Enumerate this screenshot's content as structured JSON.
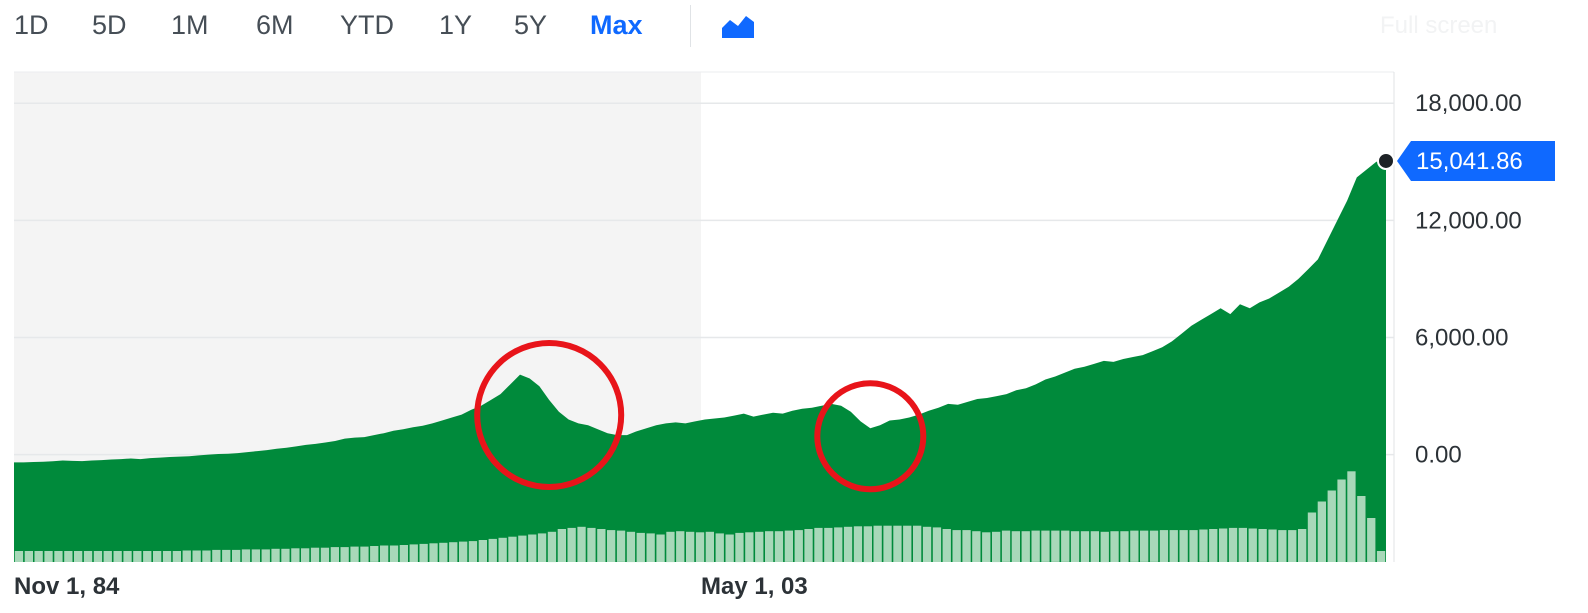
{
  "toolbar": {
    "ranges": [
      "1D",
      "5D",
      "1M",
      "6M",
      "YTD",
      "1Y",
      "5Y",
      "Max"
    ],
    "active_range": "Max",
    "chart_type_icon": "area-chart-icon",
    "fullscreen_label": "Full screen"
  },
  "colors": {
    "area": "#008a3b",
    "volume": "#a8d8b9",
    "active_tab": "#0f69ff",
    "price_badge": "#0f69ff",
    "circles": "#e8141a",
    "shaded_region": "#f4f4f4"
  },
  "chart_data": {
    "type": "area",
    "y_ticks": [
      "18,000.00",
      "12,000.00",
      "6,000.00",
      "0.00"
    ],
    "y_tick_values": [
      18000,
      12000,
      6000,
      0
    ],
    "x_ticks": [
      "Nov 1, 84",
      "May 1, 03"
    ],
    "current_price": "15,041.86",
    "ylim": [
      -5500,
      19600
    ],
    "series": [
      {
        "values": [
          -400,
          -400,
          -380,
          -360,
          -340,
          -300,
          -320,
          -330,
          -300,
          -280,
          -250,
          -230,
          -200,
          -230,
          -180,
          -150,
          -120,
          -100,
          -80,
          -40,
          0,
          30,
          50,
          80,
          130,
          180,
          230,
          300,
          350,
          420,
          500,
          550,
          620,
          700,
          820,
          870,
          900,
          1000,
          1100,
          1220,
          1300,
          1400,
          1480,
          1600,
          1750,
          1900,
          2050,
          2300,
          2500,
          2800,
          3100,
          3600,
          4100,
          3900,
          3500,
          2800,
          2200,
          1800,
          1600,
          1500,
          1300,
          1100,
          1000,
          1000,
          1200,
          1350,
          1500,
          1600,
          1650,
          1600,
          1700,
          1800,
          1850,
          1900,
          2000,
          2100,
          1950,
          2050,
          2150,
          2100,
          2250,
          2350,
          2400,
          2500,
          2600,
          2500,
          2200,
          1700,
          1350,
          1500,
          1750,
          1800,
          1900,
          2050,
          2250,
          2400,
          2600,
          2550,
          2700,
          2850,
          2900,
          3000,
          3100,
          3300,
          3400,
          3600,
          3850,
          4000,
          4200,
          4400,
          4500,
          4650,
          4800,
          4750,
          4900,
          5000,
          5100,
          5300,
          5500,
          5800,
          6200,
          6600,
          6900,
          7200,
          7500,
          7200,
          7700,
          7500,
          7800,
          8000,
          8300,
          8600,
          9000,
          9500,
          10000,
          11000,
          12000,
          13000,
          14200,
          14600,
          15000,
          15041.86
        ]
      }
    ],
    "volume_relative": [
      0.2,
      0.2,
      0.2,
      0.2,
      0.2,
      0.2,
      0.2,
      0.2,
      0.2,
      0.2,
      0.2,
      0.2,
      0.2,
      0.2,
      0.2,
      0.2,
      0.2,
      0.21,
      0.21,
      0.21,
      0.22,
      0.22,
      0.22,
      0.23,
      0.23,
      0.23,
      0.24,
      0.24,
      0.25,
      0.25,
      0.26,
      0.26,
      0.27,
      0.27,
      0.28,
      0.28,
      0.29,
      0.3,
      0.3,
      0.31,
      0.32,
      0.33,
      0.34,
      0.35,
      0.36,
      0.37,
      0.38,
      0.4,
      0.42,
      0.44,
      0.46,
      0.48,
      0.5,
      0.52,
      0.55,
      0.6,
      0.62,
      0.64,
      0.62,
      0.6,
      0.58,
      0.57,
      0.55,
      0.53,
      0.52,
      0.5,
      0.55,
      0.56,
      0.55,
      0.54,
      0.55,
      0.52,
      0.5,
      0.53,
      0.54,
      0.55,
      0.56,
      0.56,
      0.57,
      0.58,
      0.6,
      0.62,
      0.62,
      0.63,
      0.64,
      0.65,
      0.65,
      0.66,
      0.66,
      0.66,
      0.66,
      0.66,
      0.64,
      0.63,
      0.6,
      0.58,
      0.58,
      0.56,
      0.54,
      0.55,
      0.57,
      0.56,
      0.56,
      0.57,
      0.57,
      0.57,
      0.57,
      0.56,
      0.56,
      0.56,
      0.55,
      0.56,
      0.56,
      0.57,
      0.57,
      0.57,
      0.58,
      0.58,
      0.58,
      0.58,
      0.59,
      0.6,
      0.61,
      0.62,
      0.62,
      0.61,
      0.6,
      0.59,
      0.58,
      0.58,
      0.6,
      0.9,
      1.1,
      1.3,
      1.5,
      1.65,
      1.2,
      0.8,
      0.2
    ]
  },
  "annotations": {
    "circles": [
      {
        "near_index": 55
      },
      {
        "near_index": 88
      }
    ]
  }
}
